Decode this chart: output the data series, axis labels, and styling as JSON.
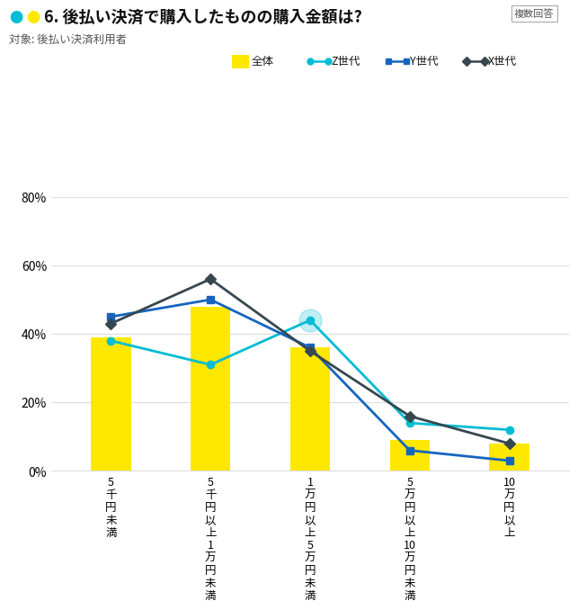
{
  "title": "6. 後払い決済で購入したものの購入金額は?",
  "subtitle": "対象: 後払い決済利用者",
  "note": "複数回答",
  "categories": [
    "5\n千\n円\n未\n満",
    "5\n千\n円\n以\n上\n1\n万\n円\n未\n満",
    "1\n万\n円\n以\n上\n5\n万\n円\n未\n満",
    "5\n万\n円\n以\n上\n10\n万\n円\n未\n満",
    "10\n万\n円\n以\n上"
  ],
  "bar_values": [
    39,
    48,
    36,
    9,
    8
  ],
  "bar_color": "#FFE800",
  "series": [
    {
      "name": "Z世代",
      "values": [
        38,
        31,
        44,
        14,
        12
      ],
      "color": "#00BCD4",
      "marker": "o",
      "linewidth": 2.0
    },
    {
      "name": "Y世代",
      "values": [
        45,
        50,
        36,
        6,
        3
      ],
      "color": "#1565C0",
      "marker": "s",
      "linewidth": 2.0
    },
    {
      "name": "X世代",
      "values": [
        43,
        56,
        35,
        16,
        8
      ],
      "color": "#37474F",
      "marker": "D",
      "linewidth": 2.0
    }
  ],
  "ylim": [
    0,
    80
  ],
  "yticks": [
    0,
    20,
    40,
    60,
    80
  ],
  "ytick_labels": [
    "0%",
    "20%",
    "40%",
    "60%",
    "80%"
  ],
  "background_color": "#ffffff",
  "grid_color": "#dddddd",
  "dot1_color": "#00BCD4",
  "dot2_color": "#FFE800",
  "legend_items": [
    "全体",
    "Z世代",
    "Y世代",
    "X世代"
  ]
}
